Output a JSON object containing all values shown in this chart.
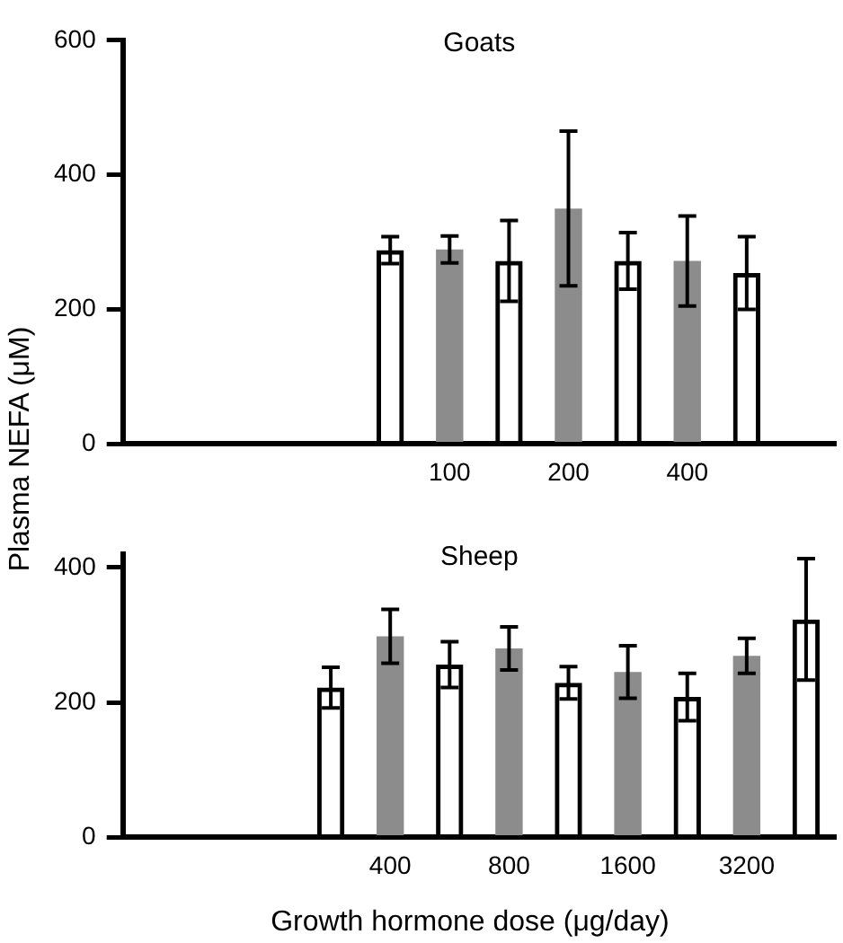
{
  "chart_data": [
    {
      "type": "bar",
      "title": "Goats",
      "ylabel": "Plasma NEFA (μM)",
      "categories": [
        null,
        null,
        null,
        null,
        null,
        "100",
        null,
        "200",
        null,
        "400",
        null,
        null
      ],
      "ylim": [
        0,
        600
      ],
      "yticks": [
        0,
        200,
        400,
        600
      ],
      "grid": false,
      "series": [
        {
          "color": "#000000",
          "values": [
            null,
            null,
            null,
            null,
            288,
            null,
            272,
            null,
            272,
            null,
            254,
            null
          ],
          "errors": [
            null,
            null,
            null,
            null,
            20,
            null,
            60,
            null,
            42,
            null,
            54,
            null
          ]
        },
        {
          "color": "#8c8c8c",
          "values": [
            null,
            null,
            null,
            null,
            null,
            289,
            null,
            350,
            null,
            272,
            null,
            null
          ],
          "errors": [
            null,
            null,
            null,
            null,
            null,
            20,
            null,
            115,
            null,
            67,
            null,
            null
          ]
        }
      ]
    },
    {
      "type": "bar",
      "title": "Sheep",
      "xlabel": "Growth hormone dose (μg/day)",
      "categories": [
        null,
        null,
        null,
        null,
        "400",
        null,
        "800",
        null,
        "1600",
        null,
        "3200",
        null
      ],
      "ylim": [
        0,
        420
      ],
      "yticks": [
        0,
        200,
        400
      ],
      "grid": false,
      "series": [
        {
          "color": "#000000",
          "values": [
            null,
            null,
            null,
            222,
            null,
            256,
            null,
            229,
            null,
            208,
            null,
            323
          ],
          "errors": [
            null,
            null,
            null,
            30,
            null,
            34,
            null,
            24,
            null,
            35,
            null,
            90
          ]
        },
        {
          "color": "#8c8c8c",
          "values": [
            null,
            null,
            null,
            null,
            298,
            null,
            280,
            null,
            245,
            null,
            269,
            null
          ],
          "errors": [
            null,
            null,
            null,
            null,
            40,
            null,
            32,
            null,
            39,
            null,
            26,
            null
          ]
        }
      ]
    }
  ]
}
